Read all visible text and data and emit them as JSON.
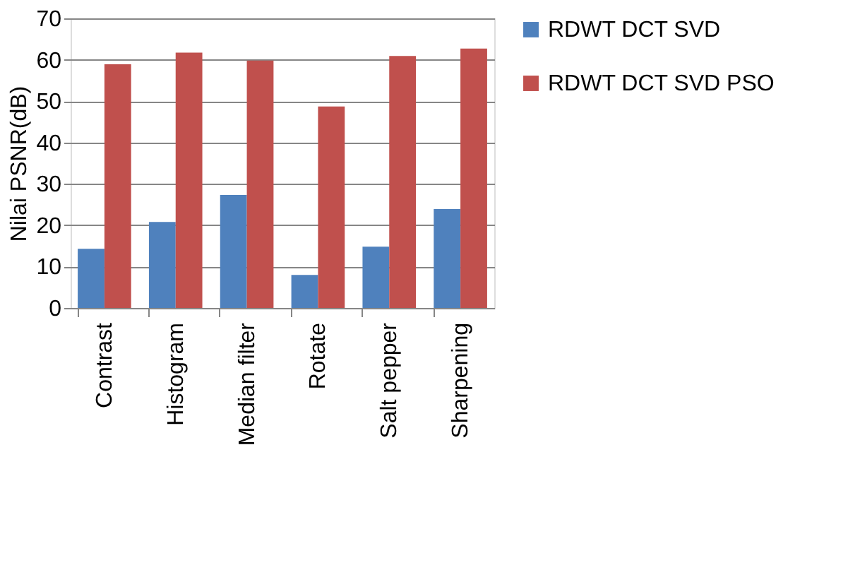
{
  "chart_data": {
    "type": "bar",
    "ylabel": "Nilai PSNR(dB)",
    "categories": [
      "Contrast",
      "Histogram",
      "Median filter",
      "Rotate",
      "Salt pepper",
      "Sharpening"
    ],
    "series": [
      {
        "name": "RDWT DCT SVD",
        "color": "#4f81bd",
        "values": [
          14.3,
          20.8,
          27.3,
          8.0,
          14.8,
          23.9
        ]
      },
      {
        "name": "RDWT DCT SVD PSO",
        "color": "#c0504d",
        "values": [
          58.9,
          61.7,
          59.8,
          48.7,
          60.9,
          62.7
        ]
      }
    ],
    "ylim": [
      0,
      70
    ],
    "yticks": [
      0,
      10,
      20,
      30,
      40,
      50,
      60,
      70
    ],
    "grid": "y",
    "legend": "right"
  }
}
